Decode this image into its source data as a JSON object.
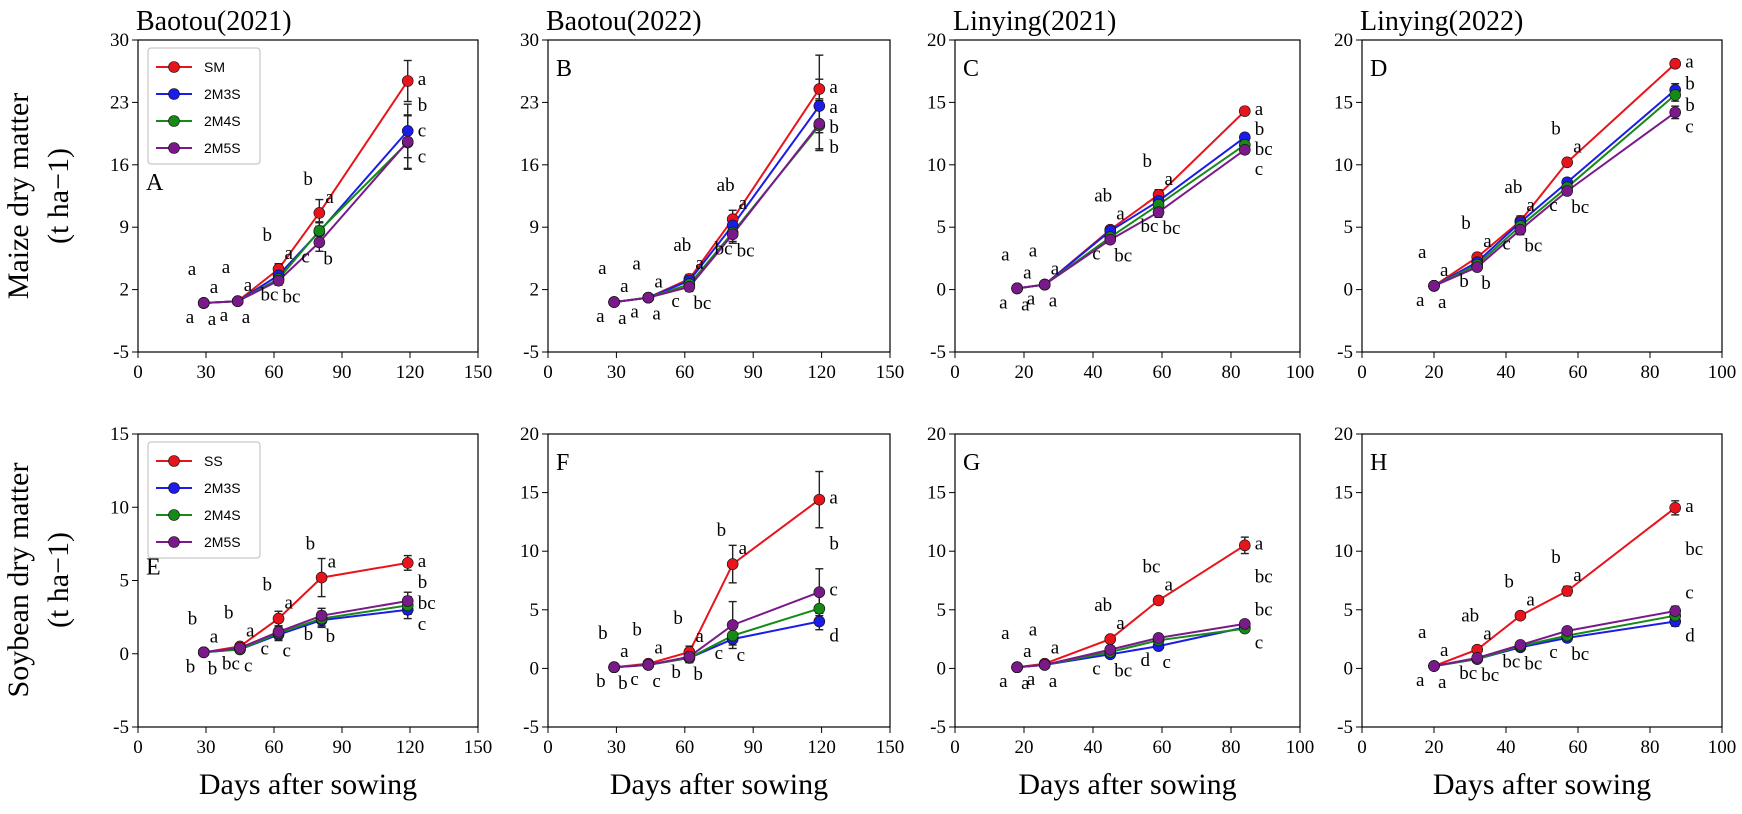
{
  "colors": {
    "SM": "#e8141b",
    "SS": "#e8141b",
    "2M3S": "#1c1ce8",
    "2M4S": "#168a16",
    "2M5S": "#7a1a8a",
    "error_bar": "#222222"
  },
  "row_labels": {
    "top": [
      "Maize dry matter",
      "(t ha−1)"
    ],
    "bottom": [
      "Soybean dry matter",
      "(t ha−1)"
    ]
  },
  "chart_data": [
    {
      "id": "A",
      "type": "line",
      "title": "Baotou(2021)",
      "panel_label": "A",
      "xlabel": "",
      "ylabel": "Maize dry matter (t ha−1)",
      "xlim": [
        0,
        150
      ],
      "ylim": [
        -5,
        30
      ],
      "xticks": [
        0,
        30,
        60,
        90,
        120,
        150
      ],
      "yticks": [
        -5,
        2,
        9,
        16,
        23,
        30
      ],
      "legend": [
        "SM",
        "2M3S",
        "2M4S",
        "2M5S"
      ],
      "x": [
        29,
        44,
        62,
        80,
        119
      ],
      "series": [
        {
          "name": "SM",
          "values": [
            0.5,
            0.7,
            4.3,
            10.6,
            25.4
          ],
          "err": [
            0.2,
            0.3,
            0.6,
            1.5,
            2.3
          ],
          "letters": [
            "a",
            "a",
            "a",
            "a",
            "a"
          ]
        },
        {
          "name": "2M3S",
          "values": [
            0.5,
            0.7,
            3.6,
            8.5,
            19.8
          ],
          "err": [
            0.2,
            0.3,
            0.5,
            1.0,
            3.0
          ],
          "letters": [
            "a",
            "a",
            "b",
            "b",
            "b"
          ]
        },
        {
          "name": "2M4S",
          "values": [
            0.5,
            0.7,
            3.2,
            8.6,
            18.5
          ],
          "err": [
            0.2,
            0.3,
            0.5,
            1.0,
            3.0
          ],
          "letters": [
            "a",
            "a",
            "bc",
            "b",
            "c"
          ]
        },
        {
          "name": "2M5S",
          "values": [
            0.5,
            0.7,
            3.0,
            7.3,
            18.6
          ],
          "err": [
            0.2,
            0.3,
            0.5,
            1.0,
            3.0
          ],
          "letters": [
            "a",
            "a",
            "bc",
            "c",
            "c"
          ]
        }
      ]
    },
    {
      "id": "B",
      "type": "line",
      "title": "Baotou(2022)",
      "panel_label": "B",
      "xlabel": "",
      "ylabel": "",
      "xlim": [
        0,
        150
      ],
      "ylim": [
        -5,
        30
      ],
      "xticks": [
        0,
        30,
        60,
        90,
        120,
        150
      ],
      "yticks": [
        -5,
        2,
        9,
        16,
        23,
        30
      ],
      "x": [
        29,
        44,
        62,
        81,
        119
      ],
      "series": [
        {
          "name": "SM",
          "values": [
            0.6,
            1.1,
            3.2,
            9.9,
            24.5
          ],
          "err": [
            0.2,
            0.2,
            0.5,
            1.0,
            3.8
          ],
          "letters": [
            "a",
            "a",
            "a",
            "a",
            "a"
          ]
        },
        {
          "name": "2M3S",
          "values": [
            0.6,
            1.1,
            3.0,
            9.2,
            22.6
          ],
          "err": [
            0.2,
            0.2,
            0.5,
            1.0,
            3.0
          ],
          "letters": [
            "a",
            "a",
            "ab",
            "ab",
            "a"
          ]
        },
        {
          "name": "2M4S",
          "values": [
            0.6,
            1.1,
            2.6,
            8.4,
            20.4
          ],
          "err": [
            0.2,
            0.2,
            0.5,
            1.0,
            2.8
          ],
          "letters": [
            "a",
            "a",
            "bc",
            "bc",
            "b"
          ]
        },
        {
          "name": "2M5S",
          "values": [
            0.6,
            1.1,
            2.3,
            8.2,
            20.6
          ],
          "err": [
            0.2,
            0.2,
            0.5,
            1.0,
            2.8
          ],
          "letters": [
            "a",
            "a",
            "c",
            "bc",
            "b"
          ]
        }
      ]
    },
    {
      "id": "C",
      "type": "line",
      "title": "Linying(2021)",
      "panel_label": "C",
      "xlabel": "",
      "ylabel": "",
      "xlim": [
        0,
        100
      ],
      "ylim": [
        -5,
        20
      ],
      "xticks": [
        0,
        20,
        40,
        60,
        80,
        100
      ],
      "yticks": [
        -5,
        0,
        5,
        10,
        15,
        20
      ],
      "x": [
        18,
        26,
        45,
        59,
        84
      ],
      "series": [
        {
          "name": "SM",
          "values": [
            0.1,
            0.4,
            4.8,
            7.6,
            14.3
          ],
          "err": [
            0.1,
            0.1,
            0.3,
            0.4,
            0.3
          ],
          "letters": [
            "a",
            "a",
            "a",
            "a",
            "a"
          ]
        },
        {
          "name": "2M3S",
          "values": [
            0.1,
            0.4,
            4.7,
            7.1,
            12.2
          ],
          "err": [
            0.1,
            0.1,
            0.3,
            0.4,
            0.3
          ],
          "letters": [
            "a",
            "a",
            "ab",
            "b",
            "b"
          ]
        },
        {
          "name": "2M4S",
          "values": [
            0.1,
            0.4,
            4.2,
            6.8,
            11.6
          ],
          "err": [
            0.1,
            0.1,
            0.3,
            0.4,
            0.3
          ],
          "letters": [
            "a",
            "a",
            "bc",
            "bc",
            "bc"
          ]
        },
        {
          "name": "2M5S",
          "values": [
            0.1,
            0.4,
            4.0,
            6.2,
            11.2
          ],
          "err": [
            0.1,
            0.1,
            0.3,
            0.4,
            0.3
          ],
          "letters": [
            "a",
            "a",
            "c",
            "bc",
            "c"
          ]
        }
      ]
    },
    {
      "id": "D",
      "type": "line",
      "title": "Linying(2022)",
      "panel_label": "D",
      "xlabel": "",
      "ylabel": "",
      "xlim": [
        0,
        100
      ],
      "ylim": [
        -5,
        20
      ],
      "xticks": [
        0,
        20,
        40,
        60,
        80,
        100
      ],
      "yticks": [
        -5,
        0,
        5,
        10,
        15,
        20
      ],
      "x": [
        20,
        32,
        44,
        57,
        87
      ],
      "series": [
        {
          "name": "SM",
          "values": [
            0.3,
            2.6,
            5.5,
            10.2,
            18.1
          ],
          "err": [
            0.1,
            0.3,
            0.4,
            0.3,
            0.3
          ],
          "letters": [
            "a",
            "a",
            "a",
            "a",
            "a"
          ]
        },
        {
          "name": "2M3S",
          "values": [
            0.3,
            2.2,
            5.4,
            8.6,
            16.0
          ],
          "err": [
            0.1,
            0.3,
            0.4,
            0.3,
            0.5
          ],
          "letters": [
            "a",
            "b",
            "ab",
            "b",
            "b"
          ]
        },
        {
          "name": "2M4S",
          "values": [
            0.3,
            2.0,
            5.1,
            8.2,
            15.6
          ],
          "err": [
            0.1,
            0.3,
            0.4,
            0.3,
            0.5
          ],
          "letters": [
            "a",
            "b",
            "bc",
            "bc",
            "b"
          ]
        },
        {
          "name": "2M5S",
          "values": [
            0.3,
            1.8,
            4.8,
            7.9,
            14.2
          ],
          "err": [
            0.1,
            0.3,
            0.4,
            0.3,
            0.5
          ],
          "letters": [
            "a",
            "b",
            "c",
            "c",
            "c"
          ]
        }
      ]
    },
    {
      "id": "E",
      "type": "line",
      "title": "",
      "panel_label": "E",
      "xlabel": "Days after sowing",
      "ylabel": "Soybean dry matter (t ha−1)",
      "xlim": [
        0,
        150
      ],
      "ylim": [
        -5,
        15
      ],
      "xticks": [
        0,
        30,
        60,
        90,
        120,
        150
      ],
      "yticks": [
        -5,
        0,
        5,
        10,
        15
      ],
      "legend": [
        "SS",
        "2M3S",
        "2M4S",
        "2M5S"
      ],
      "x": [
        29,
        45,
        62,
        81,
        119
      ],
      "series": [
        {
          "name": "SS",
          "values": [
            0.1,
            0.5,
            2.4,
            5.2,
            6.2
          ],
          "err": [
            0.1,
            0.2,
            0.5,
            1.3,
            0.5
          ],
          "letters": [
            "a",
            "a",
            "a",
            "a",
            "a"
          ]
        },
        {
          "name": "2M3S",
          "values": [
            0.1,
            0.3,
            1.3,
            2.3,
            3.0
          ],
          "err": [
            0.1,
            0.2,
            0.4,
            0.5,
            0.6
          ],
          "letters": [
            "b",
            "c",
            "c",
            "b",
            "c"
          ]
        },
        {
          "name": "2M4S",
          "values": [
            0.1,
            0.3,
            1.4,
            2.4,
            3.3
          ],
          "err": [
            0.1,
            0.2,
            0.4,
            0.5,
            0.6
          ],
          "letters": [
            "b",
            "bc",
            "c",
            "b",
            "bc"
          ]
        },
        {
          "name": "2M5S",
          "values": [
            0.1,
            0.4,
            1.5,
            2.6,
            3.6
          ],
          "err": [
            0.1,
            0.2,
            0.4,
            0.5,
            0.6
          ],
          "letters": [
            "b",
            "b",
            "b",
            "b",
            "b"
          ]
        }
      ]
    },
    {
      "id": "F",
      "type": "line",
      "title": "",
      "panel_label": "F",
      "xlabel": "Days after sowing",
      "ylabel": "",
      "xlim": [
        0,
        150
      ],
      "ylim": [
        -5,
        20
      ],
      "xticks": [
        0,
        30,
        60,
        90,
        120,
        150
      ],
      "yticks": [
        -5,
        0,
        5,
        10,
        15,
        20
      ],
      "x": [
        29,
        44,
        62,
        81,
        119
      ],
      "series": [
        {
          "name": "SS",
          "values": [
            0.1,
            0.4,
            1.4,
            8.9,
            14.4
          ],
          "err": [
            0.1,
            0.2,
            0.5,
            1.6,
            2.4
          ],
          "letters": [
            "a",
            "a",
            "a",
            "a",
            "a"
          ]
        },
        {
          "name": "2M3S",
          "values": [
            0.1,
            0.3,
            0.9,
            2.5,
            4.0
          ],
          "err": [
            0.1,
            0.2,
            0.4,
            0.5,
            0.7
          ],
          "letters": [
            "b",
            "b",
            "b",
            "c",
            "d"
          ]
        },
        {
          "name": "2M4S",
          "values": [
            0.1,
            0.3,
            0.9,
            2.8,
            5.1
          ],
          "err": [
            0.1,
            0.2,
            0.4,
            0.6,
            1.2
          ],
          "letters": [
            "b",
            "c",
            "b",
            "c",
            "c"
          ]
        },
        {
          "name": "2M5S",
          "values": [
            0.1,
            0.3,
            1.0,
            3.7,
            6.5
          ],
          "err": [
            0.1,
            0.2,
            0.4,
            2.0,
            2.0
          ],
          "letters": [
            "b",
            "c",
            "b",
            "b",
            "b"
          ]
        }
      ]
    },
    {
      "id": "G",
      "type": "line",
      "title": "",
      "panel_label": "G",
      "xlabel": "Days after sowing",
      "ylabel": "",
      "xlim": [
        0,
        100
      ],
      "ylim": [
        -5,
        20
      ],
      "xticks": [
        0,
        20,
        40,
        60,
        80,
        100
      ],
      "yticks": [
        -5,
        0,
        5,
        10,
        15,
        20
      ],
      "x": [
        18,
        26,
        45,
        59,
        84
      ],
      "series": [
        {
          "name": "SS",
          "values": [
            0.1,
            0.4,
            2.5,
            5.8,
            10.5
          ],
          "err": [
            0.1,
            0.1,
            0.3,
            0.3,
            0.7
          ],
          "letters": [
            "a",
            "a",
            "a",
            "a",
            "a"
          ]
        },
        {
          "name": "2M3S",
          "values": [
            0.1,
            0.3,
            1.2,
            1.9,
            3.5
          ],
          "err": [
            0.1,
            0.1,
            0.3,
            0.3,
            0.3
          ],
          "letters": [
            "a",
            "a",
            "c",
            "d",
            "bc"
          ]
        },
        {
          "name": "2M4S",
          "values": [
            0.1,
            0.3,
            1.4,
            2.4,
            3.4
          ],
          "err": [
            0.1,
            0.1,
            0.3,
            0.3,
            0.3
          ],
          "letters": [
            "a",
            "a",
            "bc",
            "c",
            "c"
          ]
        },
        {
          "name": "2M5S",
          "values": [
            0.1,
            0.3,
            1.6,
            2.6,
            3.8
          ],
          "err": [
            0.1,
            0.1,
            0.3,
            0.3,
            0.3
          ],
          "letters": [
            "a",
            "a",
            "ab",
            "bc",
            "bc"
          ]
        }
      ]
    },
    {
      "id": "H",
      "type": "line",
      "title": "",
      "panel_label": "H",
      "xlabel": "Days after sowing",
      "ylabel": "",
      "xlim": [
        0,
        100
      ],
      "ylim": [
        -5,
        20
      ],
      "xticks": [
        0,
        20,
        40,
        60,
        80,
        100
      ],
      "yticks": [
        -5,
        0,
        5,
        10,
        15,
        20
      ],
      "x": [
        20,
        32,
        44,
        57,
        87
      ],
      "series": [
        {
          "name": "SS",
          "values": [
            0.2,
            1.6,
            4.5,
            6.6,
            13.7
          ],
          "err": [
            0.1,
            0.3,
            0.3,
            0.4,
            0.6
          ],
          "letters": [
            "a",
            "a",
            "a",
            "a",
            "a"
          ]
        },
        {
          "name": "2M3S",
          "values": [
            0.2,
            0.8,
            1.8,
            2.6,
            4.0
          ],
          "err": [
            0.1,
            0.2,
            0.3,
            0.3,
            0.4
          ],
          "letters": [
            "a",
            "bc",
            "bc",
            "c",
            "d"
          ]
        },
        {
          "name": "2M4S",
          "values": [
            0.2,
            0.8,
            1.9,
            2.8,
            4.5
          ],
          "err": [
            0.1,
            0.2,
            0.3,
            0.3,
            0.4
          ],
          "letters": [
            "a",
            "bc",
            "bc",
            "bc",
            "c"
          ]
        },
        {
          "name": "2M5S",
          "values": [
            0.2,
            0.9,
            2.0,
            3.2,
            4.9
          ],
          "err": [
            0.1,
            0.2,
            0.3,
            0.3,
            0.4
          ],
          "letters": [
            "a",
            "ab",
            "b",
            "b",
            "bc"
          ]
        }
      ]
    }
  ]
}
